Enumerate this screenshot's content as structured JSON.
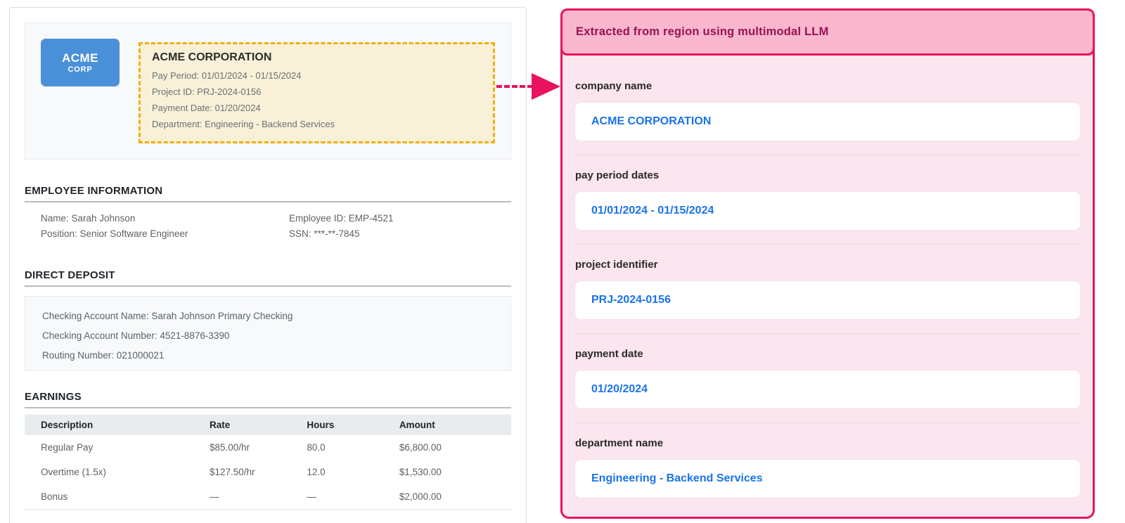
{
  "document": {
    "logo": {
      "line1": "ACME",
      "line2": "CORP"
    },
    "highlighted_region": {
      "company": "ACME CORPORATION",
      "lines": [
        "Pay Period: 01/01/2024 - 01/15/2024",
        "Project ID: PRJ-2024-0156",
        "Payment Date: 01/20/2024",
        "Department: Engineering - Backend Services"
      ]
    },
    "employee_information": {
      "title": "EMPLOYEE INFORMATION",
      "left_column": [
        "Name: Sarah Johnson",
        "Position: Senior Software Engineer"
      ],
      "right_column": [
        "Employee ID: EMP-4521",
        "SSN: ***-**-7845"
      ]
    },
    "direct_deposit": {
      "title": "DIRECT DEPOSIT",
      "lines": [
        "Checking Account Name: Sarah Johnson Primary Checking",
        "Checking Account Number: 4521-8876-3390",
        "Routing Number: 021000021"
      ]
    },
    "earnings": {
      "title": "EARNINGS",
      "columns": [
        "Description",
        "Rate",
        "Hours",
        "Amount"
      ],
      "rows": [
        [
          "Regular Pay",
          "$85.00/hr",
          "80.0",
          "$6,800.00"
        ],
        [
          "Overtime (1.5x)",
          "$127.50/hr",
          "12.0",
          "$1,530.00"
        ],
        [
          "Bonus",
          "—",
          "—",
          "$2,000.00"
        ]
      ]
    }
  },
  "extraction_panel": {
    "title": "Extracted from region using multimodal LLM",
    "fields": [
      {
        "label": "company name",
        "value": "ACME CORPORATION"
      },
      {
        "label": "pay period dates",
        "value": "01/01/2024 - 01/15/2024"
      },
      {
        "label": "project identifier",
        "value": "PRJ-2024-0156"
      },
      {
        "label": "payment date",
        "value": "01/20/2024"
      },
      {
        "label": "department name",
        "value": "Engineering - Backend Services"
      }
    ]
  },
  "colors": {
    "accent_pink": "#e8125f",
    "panel_header_bg": "#f8b7cd",
    "panel_body_bg": "#fbe5ee",
    "panel_title_text": "#9a1155",
    "value_blue": "#1a73e8",
    "highlight_border": "#f2ae0e",
    "highlight_bg": "#f8f1d8",
    "logo_blue": "#4a90d9"
  }
}
